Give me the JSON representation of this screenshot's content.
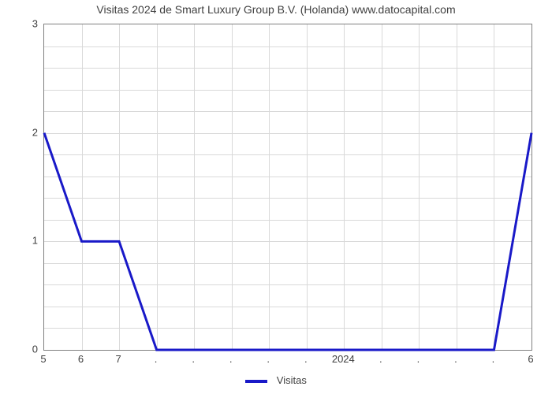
{
  "chart": {
    "type": "line",
    "title": "Visitas 2024 de Smart Luxury Group B.V. (Holanda) www.datocapital.com",
    "title_fontsize": 14,
    "title_color": "#404040",
    "background_color": "#ffffff",
    "plot_border_color": "#808080",
    "grid_color": "#d9d9d9",
    "line_color": "#1919c8",
    "line_width": 3,
    "y": {
      "min": 0,
      "max": 3,
      "ticks": [
        0,
        1,
        2,
        3
      ],
      "minor_count_between": 4,
      "tick_fontsize": 13,
      "tick_color": "#404040"
    },
    "x": {
      "categories_count": 14,
      "labels": [
        "5",
        "6",
        "7",
        ".",
        ".",
        ".",
        ".",
        ".",
        "2024",
        ".",
        ".",
        ".",
        ".",
        "6"
      ],
      "tick_fontsize": 13,
      "tick_color": "#404040"
    },
    "series": {
      "name": "Visitas",
      "values": [
        2,
        1,
        1,
        0,
        0,
        0,
        0,
        0,
        0,
        0,
        0,
        0,
        0,
        2
      ]
    },
    "legend": {
      "label": "Visitas",
      "swatch_color": "#1919c8",
      "fontsize": 13
    }
  }
}
